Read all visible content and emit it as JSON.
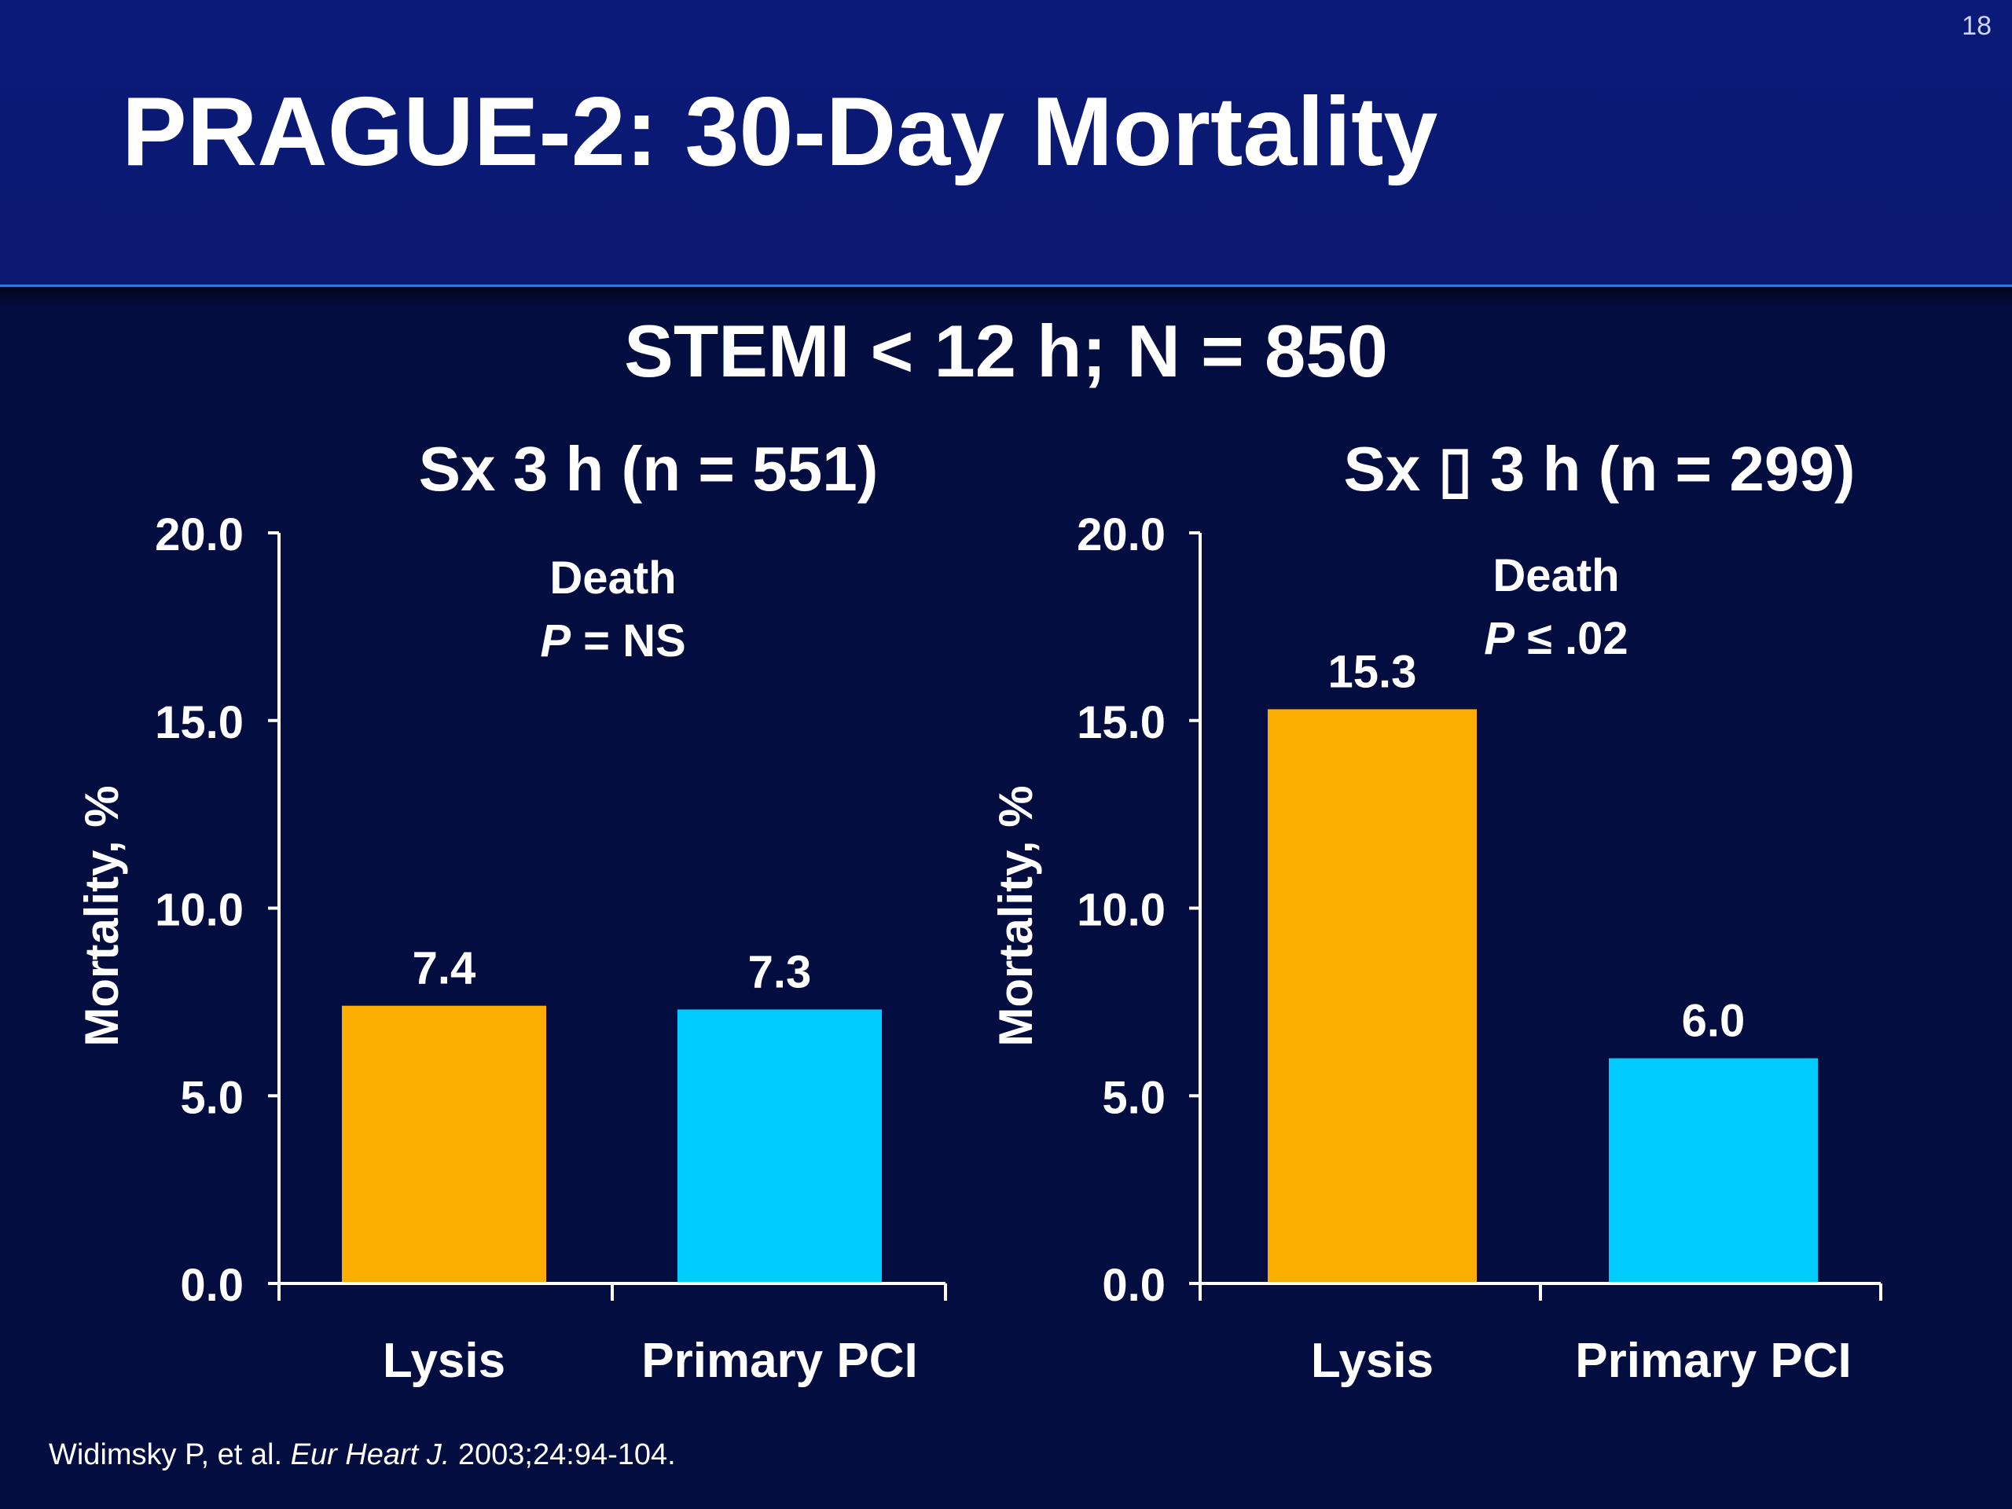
{
  "slide": {
    "number": "18",
    "title": "PRAGUE-2: 30-Day Mortality",
    "subtitle": "STEMI < 12 h; N = 850"
  },
  "citation": {
    "authors": "Widimsky P, et al. ",
    "journal": "Eur Heart J.",
    "details": " 2003;24:94-104."
  },
  "colors": {
    "background": "#030d3f",
    "header": "#0b1a78",
    "lysis": "#fbae00",
    "primary_pci": "#00ccff",
    "axis": "#ffffff"
  },
  "chart_data": [
    {
      "type": "bar",
      "title": "Sx  3 h (n = 551)",
      "categories": [
        "Lysis",
        "Primary PCI"
      ],
      "values": [
        7.4,
        7.3
      ],
      "value_labels": [
        "7.4",
        "7.3"
      ],
      "colors": [
        "#fbae00",
        "#00ccff"
      ],
      "ylabel": "Mortality, %",
      "ylim": [
        0,
        20
      ],
      "yticks": [
        "0.0",
        "5.0",
        "10.0",
        "15.0",
        "20.0"
      ],
      "annotation": {
        "line1": "Death",
        "p_symbol": "P",
        "p_text": " = NS"
      }
    },
    {
      "type": "bar",
      "title": "Sx ▯ 3 h (n = 299)",
      "categories": [
        "Lysis",
        "Primary PCI"
      ],
      "values": [
        15.3,
        6.0
      ],
      "value_labels": [
        "15.3",
        "6.0"
      ],
      "colors": [
        "#fbae00",
        "#00ccff"
      ],
      "ylabel": "Mortality, %",
      "ylim": [
        0,
        20
      ],
      "yticks": [
        "0.0",
        "5.0",
        "10.0",
        "15.0",
        "20.0"
      ],
      "annotation": {
        "line1": "Death",
        "p_symbol": "P",
        "p_text": " ≤ .02"
      }
    }
  ]
}
